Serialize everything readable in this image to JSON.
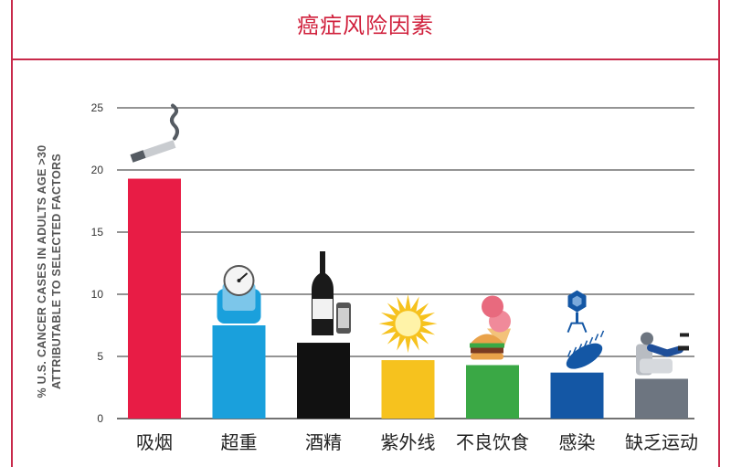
{
  "title": "癌症风险因素",
  "chart_data": {
    "type": "bar",
    "ylabel_line1": "% U.S. CANCER CASES IN ADULTS AGE >30",
    "ylabel_line2": "ATTRIBUTABLE TO SELECTED FACTORS",
    "ylim": [
      0,
      25
    ],
    "yticks": [
      0,
      5,
      10,
      15,
      20,
      25
    ],
    "grid": true,
    "categories": [
      "吸烟",
      "超重",
      "酒精",
      "紫外线",
      "不良饮食",
      "感染",
      "缺乏运动"
    ],
    "values": [
      19.3,
      7.5,
      6.1,
      4.7,
      4.3,
      3.7,
      3.2
    ],
    "colors": [
      "#e81c45",
      "#1aa0dc",
      "#111111",
      "#f6c21e",
      "#3aa845",
      "#1457a5",
      "#6d7580"
    ],
    "icons": [
      "cigarette-icon",
      "scale-icon",
      "wine-bottle-icon",
      "sun-icon",
      "food-icon",
      "virus-icon",
      "couch-icon"
    ]
  }
}
